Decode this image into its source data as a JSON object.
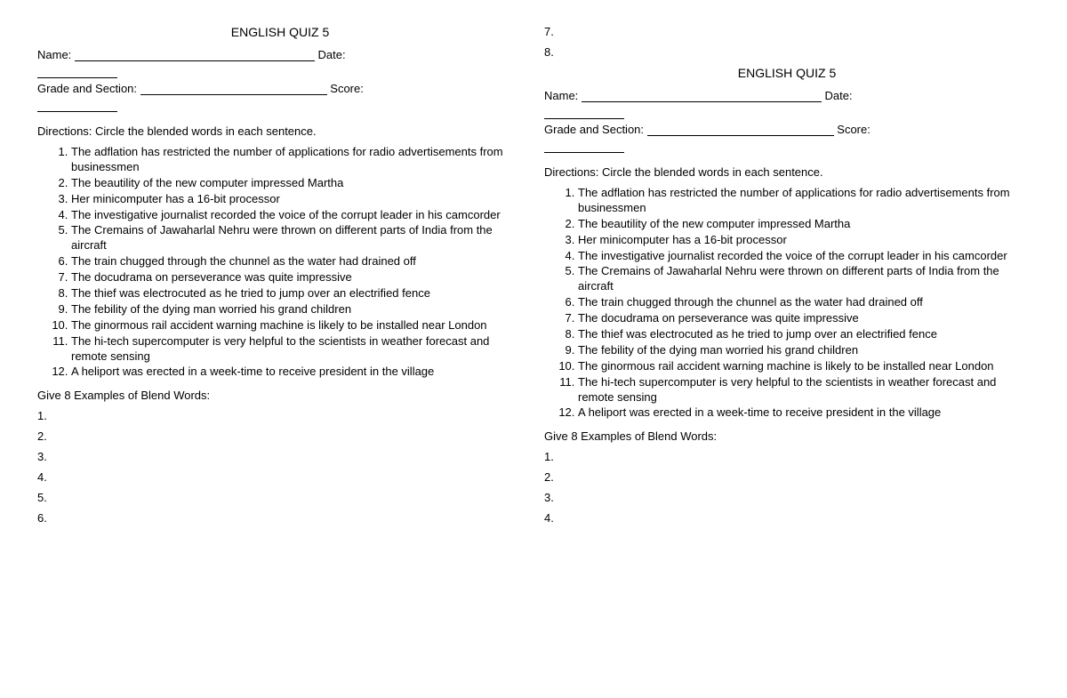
{
  "quiz": {
    "title": "ENGLISH QUIZ 5",
    "name_label": "Name:",
    "date_label": "Date:",
    "grade_label": "Grade and Section:",
    "score_label": "Score:",
    "directions": "Directions: Circle the blended words in each sentence.",
    "sentences": [
      "The adflation has restricted the number of applications for radio advertisements from businessmen",
      "The beautility of the new computer impressed Martha",
      "Her minicomputer has a 16-bit processor",
      "The investigative journalist recorded the voice of the corrupt leader in his camcorder",
      "The Cremains of Jawaharlal Nehru were thrown on different parts of India from the aircraft",
      "The train chugged through the chunnel as the water had drained off",
      "The docudrama on perseverance was quite impressive",
      "The thief was electrocuted as he tried to jump over an electrified fence",
      "The febility of the dying man worried his grand children",
      "The ginormous rail accident warning machine is likely to be installed near London",
      "The hi-tech supercomputer is very helpful to the scientists in weather forecast and remote sensing",
      "A heliport was erected in a week-time to receive president in the village"
    ],
    "examples_heading": "Give 8 Examples of Blend Words:",
    "example_numbers_left": [
      "1.",
      "2.",
      "3.",
      "4.",
      "5.",
      "6."
    ],
    "continuation_numbers": [
      "7.",
      "8."
    ],
    "example_numbers_right": [
      "1.",
      "2.",
      "3.",
      "4."
    ]
  }
}
